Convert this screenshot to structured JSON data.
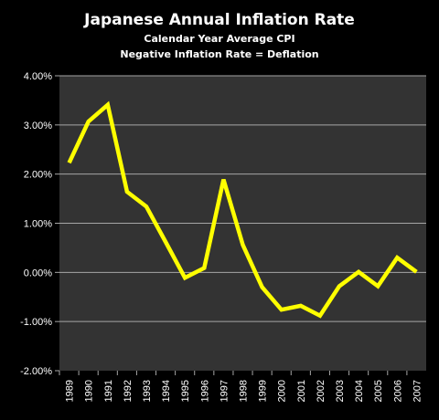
{
  "chart_data": {
    "type": "line",
    "title": "Japanese Annual Inflation Rate",
    "subtitles": [
      "Calendar Year Average CPI",
      "Negative Inflation Rate = Deflation"
    ],
    "xlabel": "",
    "ylabel": "",
    "categories": [
      "1989",
      "1990",
      "1991",
      "1992",
      "1993",
      "1994",
      "1995",
      "1996",
      "1997",
      "1998",
      "1999",
      "2000",
      "2001",
      "2002",
      "2003",
      "2004",
      "2005",
      "2006",
      "2007"
    ],
    "series": [
      {
        "values": [
          2.23,
          3.07,
          3.41,
          1.64,
          1.34,
          0.62,
          -0.11,
          0.09,
          1.89,
          0.56,
          -0.3,
          -0.76,
          -0.68,
          -0.88,
          -0.28,
          0.01,
          -0.28,
          0.3,
          0.01
        ],
        "color": "#ffff00"
      }
    ],
    "ylim": [
      -2,
      4
    ],
    "yticks": [
      -2,
      -1,
      0,
      1,
      2,
      3,
      4
    ],
    "ytick_labels": [
      "-2.00%",
      "-1.00%",
      "0.00%",
      "1.00%",
      "2.00%",
      "3.00%",
      "4.00%"
    ],
    "grid": true,
    "legend": "none",
    "colors": {
      "background": "#000000",
      "plot_area": "#333333",
      "gridline": "#a6a6a6",
      "line": "#ffff00",
      "text": "#ffffff"
    }
  }
}
